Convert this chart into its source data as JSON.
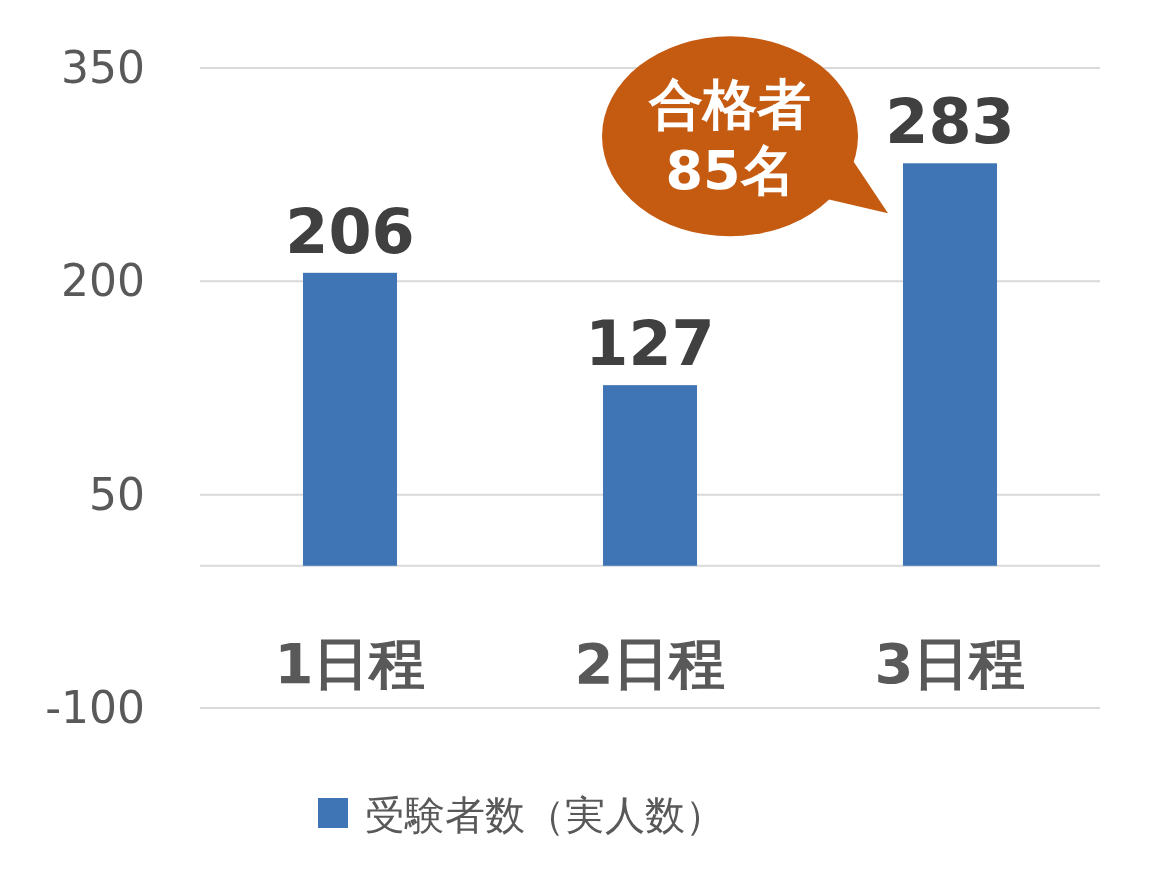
{
  "chart_data": {
    "type": "bar",
    "categories": [
      "1日程",
      "2日程",
      "3日程"
    ],
    "series": [
      {
        "name": "受験者数（実人数）",
        "color": "#3f75b4",
        "values": [
          206,
          127,
          283
        ]
      }
    ],
    "ylim": [
      -100,
      350
    ],
    "yticks": [
      -100,
      50,
      200,
      350
    ],
    "grid": "y",
    "legend": "bottom",
    "data_labels": true,
    "annotations": [
      {
        "text": "合格者 85名",
        "x": "3日程",
        "y": 283
      }
    ]
  }
}
